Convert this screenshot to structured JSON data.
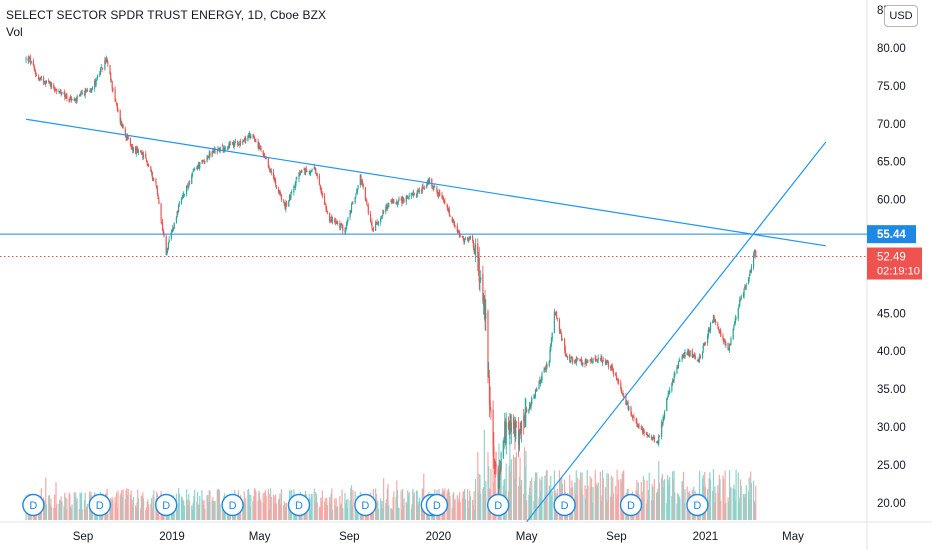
{
  "legend": {
    "title": "SELECT SECTOR SPDR TRUST ENERGY, 1D, Cboe BZX",
    "vol": "Vol"
  },
  "currency_badge": "USD",
  "colors": {
    "up": "#26a69a",
    "down": "#ef5350",
    "trendline": "#2196f3",
    "level_line": "#1e88e5",
    "price_line": "#ef5350",
    "vol_up": "#8fd3cb",
    "vol_down": "#f5a9a7"
  },
  "chart_data": {
    "type": "candlestick",
    "y_ticks": [
      "80.00",
      "75.00",
      "70.00",
      "65.00",
      "60.00",
      "55.00",
      "50.00",
      "45.00",
      "40.00",
      "35.00",
      "30.00",
      "25.00",
      "20.00"
    ],
    "x_ticks": [
      "Sep",
      "2019",
      "May",
      "Sep",
      "2020",
      "May",
      "Sep",
      "2021",
      "May"
    ],
    "ylim": [
      17.5,
      85
    ],
    "price_path": [
      [
        "2018-06-20",
        78.5
      ],
      [
        "2018-07-01",
        76.0
      ],
      [
        "2018-07-15",
        75.5
      ],
      [
        "2018-08-01",
        74.0
      ],
      [
        "2018-08-20",
        73.0
      ],
      [
        "2018-09-15",
        75.0
      ],
      [
        "2018-10-03",
        78.5
      ],
      [
        "2018-10-20",
        71.0
      ],
      [
        "2018-11-05",
        67.0
      ],
      [
        "2018-11-25",
        65.5
      ],
      [
        "2018-12-10",
        62.0
      ],
      [
        "2018-12-24",
        53.0
      ],
      [
        "2019-01-10",
        59.0
      ],
      [
        "2019-02-01",
        64.0
      ],
      [
        "2019-03-01",
        66.5
      ],
      [
        "2019-04-01",
        67.5
      ],
      [
        "2019-04-22",
        68.5
      ],
      [
        "2019-05-15",
        64.0
      ],
      [
        "2019-06-05",
        59.0
      ],
      [
        "2019-06-25",
        63.5
      ],
      [
        "2019-07-15",
        64.0
      ],
      [
        "2019-08-05",
        57.5
      ],
      [
        "2019-08-26",
        56.0
      ],
      [
        "2019-09-16",
        63.0
      ],
      [
        "2019-10-03",
        56.0
      ],
      [
        "2019-10-25",
        59.5
      ],
      [
        "2019-11-15",
        60.0
      ],
      [
        "2019-12-05",
        61.0
      ],
      [
        "2019-12-20",
        62.5
      ],
      [
        "2020-01-10",
        59.5
      ],
      [
        "2020-01-25",
        56.0
      ],
      [
        "2020-02-05",
        54.5
      ],
      [
        "2020-02-15",
        55.0
      ],
      [
        "2020-02-24",
        51.5
      ],
      [
        "2020-03-05",
        45.5
      ],
      [
        "2020-03-12",
        32.0
      ],
      [
        "2020-03-18",
        24.0
      ],
      [
        "2020-03-23",
        23.0
      ],
      [
        "2020-04-02",
        30.0
      ],
      [
        "2020-04-20",
        29.0
      ],
      [
        "2020-05-10",
        34.0
      ],
      [
        "2020-06-01",
        39.0
      ],
      [
        "2020-06-08",
        45.5
      ],
      [
        "2020-06-25",
        39.0
      ],
      [
        "2020-07-20",
        38.5
      ],
      [
        "2020-08-10",
        39.0
      ],
      [
        "2020-08-25",
        38.0
      ],
      [
        "2020-09-15",
        33.0
      ],
      [
        "2020-10-01",
        30.0
      ],
      [
        "2020-10-28",
        28.0
      ],
      [
        "2020-11-09",
        33.5
      ],
      [
        "2020-11-25",
        38.5
      ],
      [
        "2020-12-08",
        40.0
      ],
      [
        "2020-12-22",
        38.5
      ],
      [
        "2021-01-12",
        44.5
      ],
      [
        "2021-02-01",
        40.0
      ],
      [
        "2021-02-15",
        46.0
      ],
      [
        "2021-03-01",
        49.5
      ],
      [
        "2021-03-09",
        53.2
      ],
      [
        "2021-03-11",
        52.49
      ]
    ],
    "horizontal_level": 55.44,
    "last_price": 52.49,
    "countdown": "02:19:10",
    "trendlines": [
      {
        "from": [
          "2018-06-15",
          70.6
        ],
        "to": [
          "2021-06-15",
          53.9
        ]
      },
      {
        "from": [
          "2020-05-01",
          17.5
        ],
        "to": [
          "2021-06-15",
          67.6
        ]
      }
    ],
    "dividend_marker_label": "D",
    "dividend_dates": [
      "2018-06-25",
      "2018-09-24",
      "2018-12-24",
      "2019-03-25",
      "2019-06-24",
      "2019-09-23",
      "2019-12-23",
      "2019-12-30",
      "2020-03-23",
      "2020-06-22",
      "2020-09-21",
      "2020-12-21"
    ]
  }
}
